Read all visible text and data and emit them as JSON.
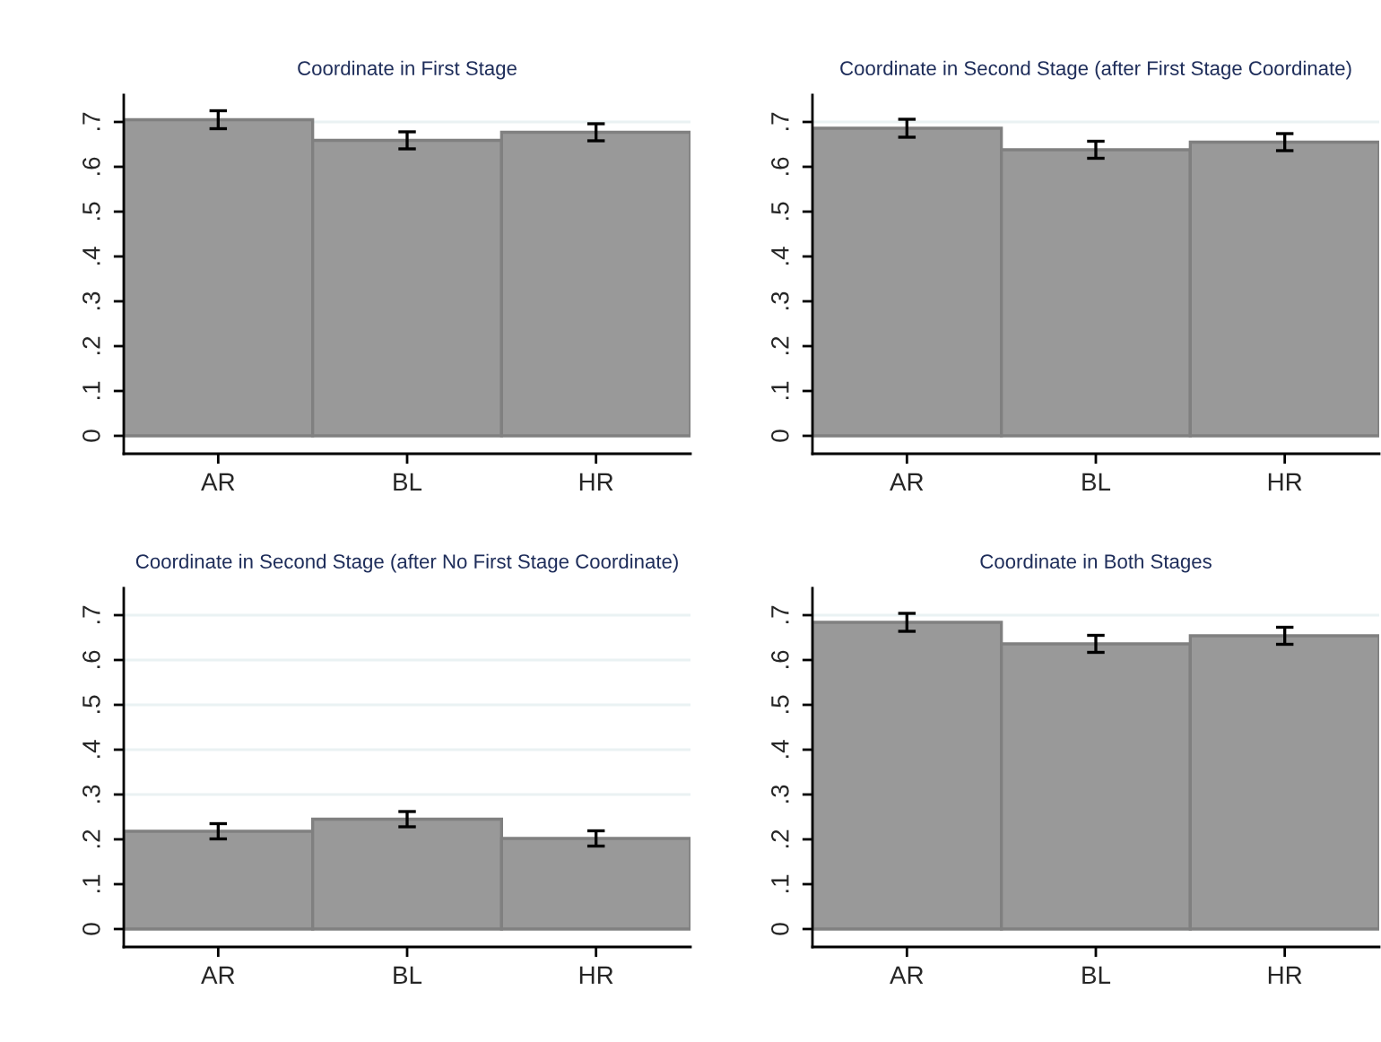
{
  "chart_data": [
    {
      "type": "bar",
      "title": "Coordinate in First Stage",
      "categories": [
        "AR",
        "BL",
        "HR"
      ],
      "values": [
        0.705,
        0.659,
        0.677
      ],
      "errors": [
        0.02,
        0.019,
        0.019
      ],
      "color": "#999999",
      "ylim": [
        -0.04,
        0.76
      ],
      "yticks": [
        0,
        {
          "value": 0.1,
          "label": ".1"
        },
        {
          "value": 0.2,
          "label": ".2"
        },
        {
          "value": 0.3,
          "label": ".3"
        },
        {
          "value": 0.4,
          "label": ".4"
        },
        {
          "value": 0.5,
          "label": ".5"
        },
        {
          "value": 0.6,
          "label": ".6"
        },
        {
          "value": 0.7,
          "label": ".7"
        }
      ],
      "grid": "y"
    },
    {
      "type": "bar",
      "title": "Coordinate in Second Stage (after First Stage Coordinate)",
      "categories": [
        "AR",
        "BL",
        "HR"
      ],
      "values": [
        0.686,
        0.638,
        0.655
      ],
      "errors": [
        0.02,
        0.019,
        0.019
      ],
      "color": "#999999",
      "ylim": [
        -0.04,
        0.76
      ],
      "yticks": [
        0,
        {
          "value": 0.1,
          "label": ".1"
        },
        {
          "value": 0.2,
          "label": ".2"
        },
        {
          "value": 0.3,
          "label": ".3"
        },
        {
          "value": 0.4,
          "label": ".4"
        },
        {
          "value": 0.5,
          "label": ".5"
        },
        {
          "value": 0.6,
          "label": ".6"
        },
        {
          "value": 0.7,
          "label": ".7"
        }
      ],
      "grid": "y"
    },
    {
      "type": "bar",
      "title": "Coordinate in Second Stage (after No First Stage Coordinate)",
      "categories": [
        "AR",
        "BL",
        "HR"
      ],
      "values": [
        0.218,
        0.245,
        0.202
      ],
      "errors": [
        0.017,
        0.017,
        0.017
      ],
      "color": "#999999",
      "ylim": [
        -0.04,
        0.76
      ],
      "yticks": [
        0,
        {
          "value": 0.1,
          "label": ".1"
        },
        {
          "value": 0.2,
          "label": ".2"
        },
        {
          "value": 0.3,
          "label": ".3"
        },
        {
          "value": 0.4,
          "label": ".4"
        },
        {
          "value": 0.5,
          "label": ".5"
        },
        {
          "value": 0.6,
          "label": ".6"
        },
        {
          "value": 0.7,
          "label": ".7"
        }
      ],
      "grid": "y"
    },
    {
      "type": "bar",
      "title": "Coordinate in Both Stages",
      "categories": [
        "AR",
        "BL",
        "HR"
      ],
      "values": [
        0.684,
        0.636,
        0.654
      ],
      "errors": [
        0.02,
        0.019,
        0.019
      ],
      "color": "#999999",
      "ylim": [
        -0.04,
        0.76
      ],
      "yticks": [
        0,
        {
          "value": 0.1,
          "label": ".1"
        },
        {
          "value": 0.2,
          "label": ".2"
        },
        {
          "value": 0.3,
          "label": ".3"
        },
        {
          "value": 0.4,
          "label": ".4"
        },
        {
          "value": 0.5,
          "label": ".5"
        },
        {
          "value": 0.6,
          "label": ".6"
        },
        {
          "value": 0.7,
          "label": ".7"
        }
      ],
      "grid": "y"
    }
  ]
}
